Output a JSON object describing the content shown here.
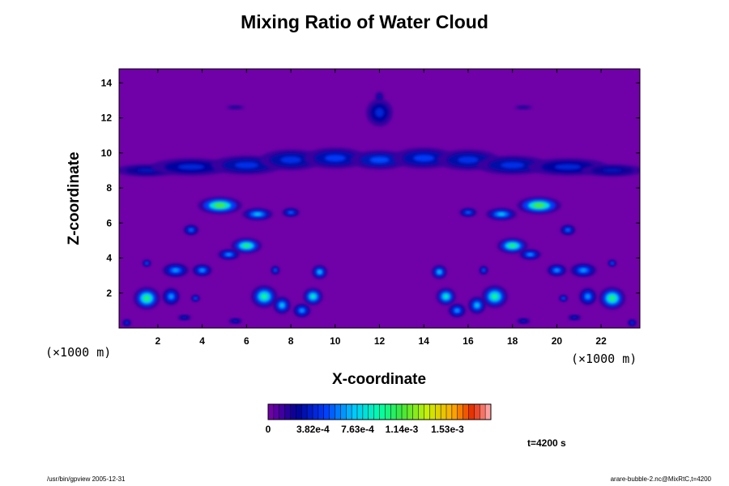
{
  "chart_data": {
    "type": "heatmap",
    "title": "Mixing Ratio of Water Cloud",
    "xlabel": "X-coordinate",
    "ylabel": "Z-coordinate",
    "x_unit": "(×1000 m)",
    "z_unit": "(×1000 m)",
    "xlim": [
      0.25,
      23.75
    ],
    "ylim": [
      0,
      14.8
    ],
    "x_ticks": [
      2,
      4,
      6,
      8,
      10,
      12,
      14,
      16,
      18,
      20,
      22
    ],
    "y_ticks": [
      2,
      4,
      6,
      8,
      10,
      12,
      14
    ],
    "colorbar": {
      "min": 0,
      "max": 0.0019,
      "tick_labels": [
        "0",
        "3.82e-4",
        "7.63e-4",
        "1.14e-3",
        "1.53e-3"
      ]
    },
    "background_color": "#7000a8",
    "cloud_features": [
      {
        "x": 12.0,
        "z": 9.3,
        "level": 0.22,
        "desc": "anvil"
      },
      {
        "x": 12.0,
        "z": 12.3,
        "level": 0.18,
        "desc": "top"
      },
      {
        "x": 5.0,
        "z": 6.9,
        "level": 0.62
      },
      {
        "x": 19.0,
        "z": 6.9,
        "level": 0.62
      },
      {
        "x": 6.0,
        "z": 4.7,
        "level": 0.55
      },
      {
        "x": 18.0,
        "z": 4.7,
        "level": 0.55
      },
      {
        "x": 1.5,
        "z": 1.7,
        "level": 0.55
      },
      {
        "x": 22.5,
        "z": 1.7,
        "level": 0.55
      },
      {
        "x": 6.8,
        "z": 1.8,
        "level": 0.52
      },
      {
        "x": 17.2,
        "z": 1.8,
        "level": 0.52
      },
      {
        "x": 9.0,
        "z": 1.8,
        "level": 0.48
      },
      {
        "x": 15.0,
        "z": 1.8,
        "level": 0.48
      }
    ],
    "time_label": "t=4200 s"
  },
  "footer": {
    "left": "/usr/bin/gpview 2005-12-31",
    "right": "arare-bubble-2.nc@MixRtC,t=4200"
  }
}
